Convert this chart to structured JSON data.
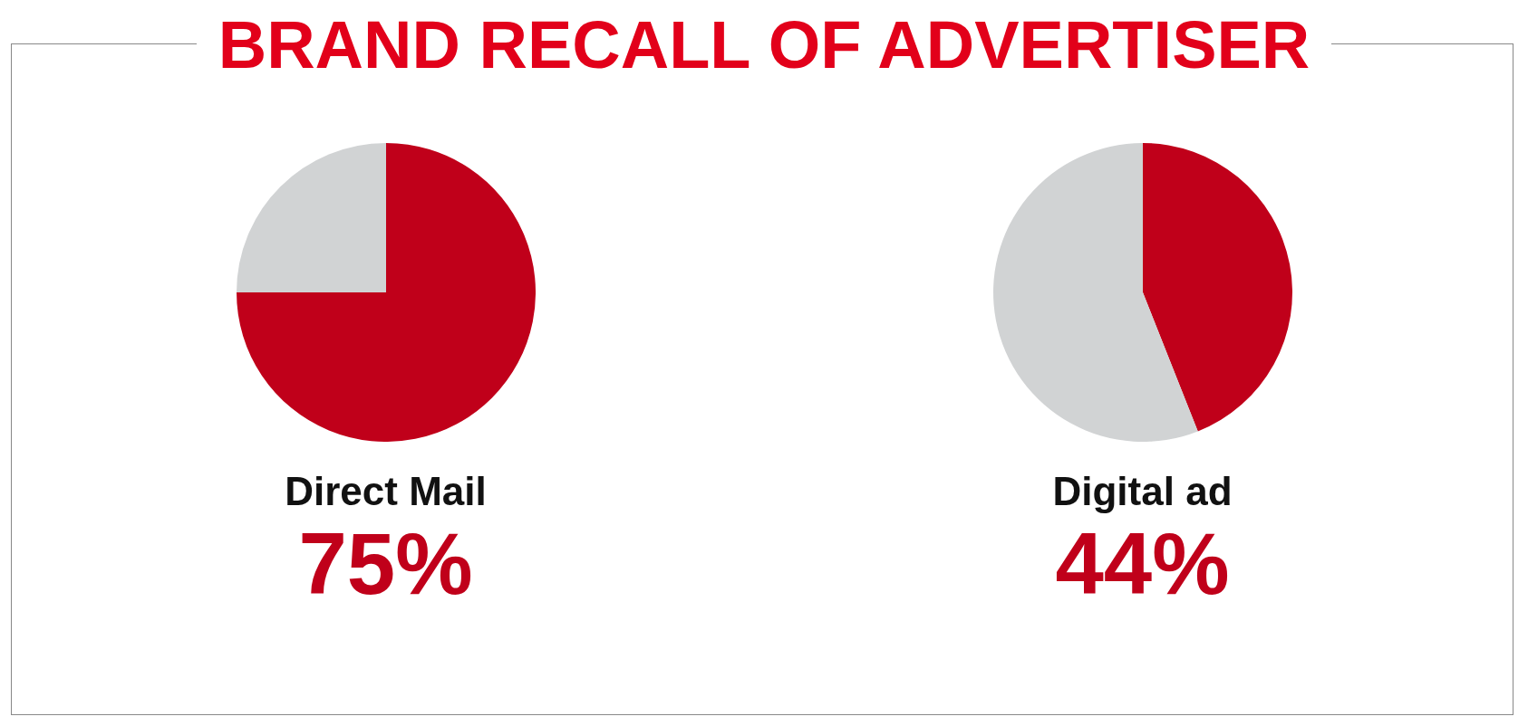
{
  "chart_data": [
    {
      "type": "pie",
      "title": "BRAND RECALL OF ADVERTISER",
      "xlabel": "Direct Mail",
      "categories": [
        null,
        null
      ],
      "values": [
        75,
        25
      ],
      "colors": [
        "#c0001a",
        "#d1d3d4"
      ],
      "value_labels": [
        "75%",
        null
      ]
    },
    {
      "type": "pie",
      "xlabel": "Digital ad",
      "categories": [
        null,
        null
      ],
      "values": [
        44,
        56
      ],
      "colors": [
        "#c0001a",
        "#d1d3d4"
      ],
      "value_labels": [
        "44%",
        null
      ]
    }
  ]
}
